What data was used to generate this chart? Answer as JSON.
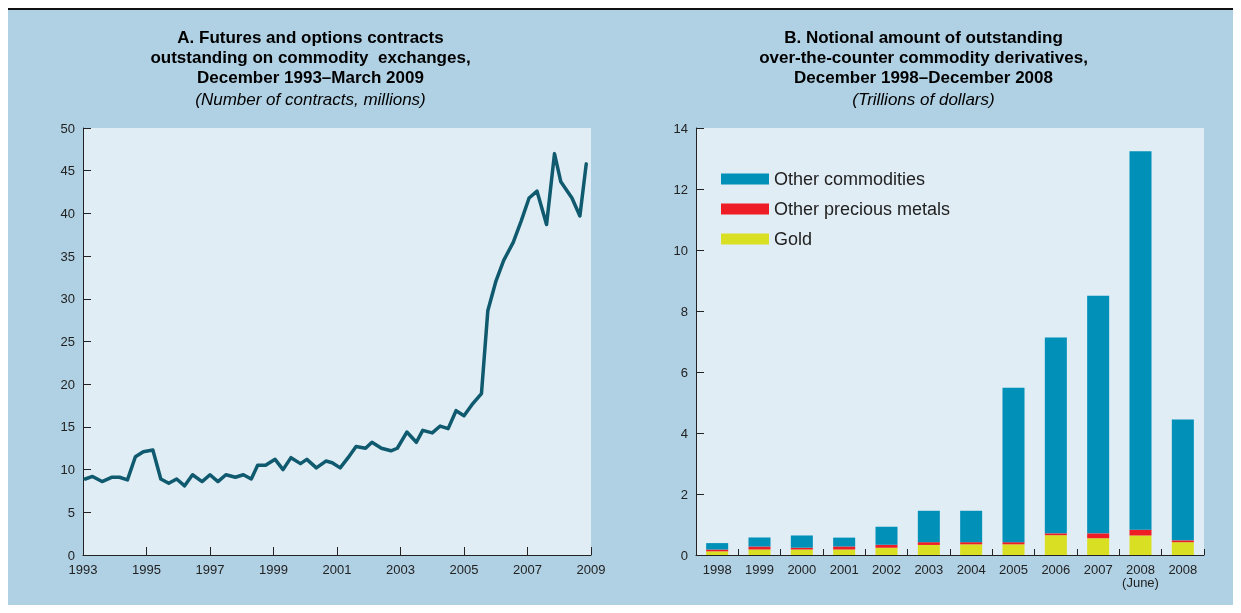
{
  "chart_data": [
    {
      "type": "line",
      "title": "A. Futures and options contracts\noutstanding on commodity  exchanges,\nDecember 1993–March 2009",
      "subtitle": "(Number of contracts, millions)",
      "x": [
        1993.07,
        1993.3,
        1993.6,
        1993.9,
        1994.15,
        1994.4,
        1994.65,
        1994.9,
        1995.2,
        1995.45,
        1995.7,
        1995.95,
        1996.2,
        1996.45,
        1996.75,
        1997.0,
        1997.25,
        1997.5,
        1997.8,
        1998.05,
        1998.3,
        1998.5,
        1998.75,
        1999.05,
        1999.3,
        1999.55,
        1999.85,
        2000.05,
        2000.35,
        2000.65,
        2000.85,
        2001.1,
        2001.35,
        2001.6,
        2001.9,
        2002.1,
        2002.4,
        2002.7,
        2002.9,
        2003.2,
        2003.5,
        2003.7,
        2004.0,
        2004.25,
        2004.5,
        2004.75,
        2005.0,
        2005.25,
        2005.55,
        2005.75,
        2006.0,
        2006.25,
        2006.55,
        2006.8,
        2007.05,
        2007.3,
        2007.6,
        2007.85,
        2008.05,
        2008.4,
        2008.65,
        2008.85
      ],
      "values": [
        8.9,
        9.2,
        8.6,
        9.1,
        9.1,
        8.8,
        11.5,
        12.1,
        12.3,
        8.9,
        8.4,
        8.9,
        8.1,
        9.4,
        8.6,
        9.4,
        8.6,
        9.4,
        9.1,
        9.4,
        8.9,
        10.5,
        10.5,
        11.2,
        10.0,
        11.4,
        10.7,
        11.2,
        10.2,
        11.0,
        10.8,
        10.2,
        11.4,
        12.7,
        12.5,
        13.2,
        12.5,
        12.2,
        12.5,
        14.4,
        13.2,
        14.6,
        14.3,
        15.1,
        14.8,
        16.9,
        16.3,
        17.6,
        18.9,
        28.6,
        32.0,
        34.5,
        36.6,
        39.1,
        41.8,
        42.6,
        38.7,
        47.0,
        43.7,
        41.8,
        39.7,
        45.8
      ],
      "color": "#0f5a6e",
      "xlim": [
        1993,
        2009
      ],
      "xticks": [
        1993,
        1995,
        1997,
        1999,
        2001,
        2003,
        2005,
        2007,
        2009
      ],
      "ylim": [
        0,
        50
      ],
      "yticks": [
        0,
        5,
        10,
        15,
        20,
        25,
        30,
        35,
        40,
        45,
        50
      ],
      "grid": false
    },
    {
      "type": "bar",
      "title": "B. Notional amount of outstanding\nover-the-counter commodity derivatives,\nDecember 1998–December 2008",
      "subtitle": "(Trillions of dollars)",
      "categories": [
        "1998",
        "1999",
        "2000",
        "2001",
        "2002",
        "2003",
        "2004",
        "2005",
        "2006",
        "2007",
        "2008\n(June)",
        "2008"
      ],
      "stacked": true,
      "series": [
        {
          "name": "Gold",
          "color": "#d9df22",
          "values": [
            0.12,
            0.18,
            0.18,
            0.18,
            0.24,
            0.33,
            0.35,
            0.35,
            0.65,
            0.55,
            0.64,
            0.42
          ]
        },
        {
          "name": "Other precious metals",
          "color": "#ee1c25",
          "values": [
            0.06,
            0.1,
            0.06,
            0.1,
            0.1,
            0.09,
            0.07,
            0.07,
            0.06,
            0.16,
            0.19,
            0.06
          ]
        },
        {
          "name": "Other commodities",
          "color": "#0090b8",
          "values": [
            0.21,
            0.29,
            0.4,
            0.29,
            0.59,
            1.03,
            1.03,
            5.06,
            6.42,
            7.79,
            12.41,
            3.96
          ]
        }
      ],
      "ylim": [
        0,
        14
      ],
      "yticks": [
        0,
        2,
        4,
        6,
        8,
        10,
        12,
        14
      ],
      "grid": false,
      "legend": "top left"
    }
  ]
}
